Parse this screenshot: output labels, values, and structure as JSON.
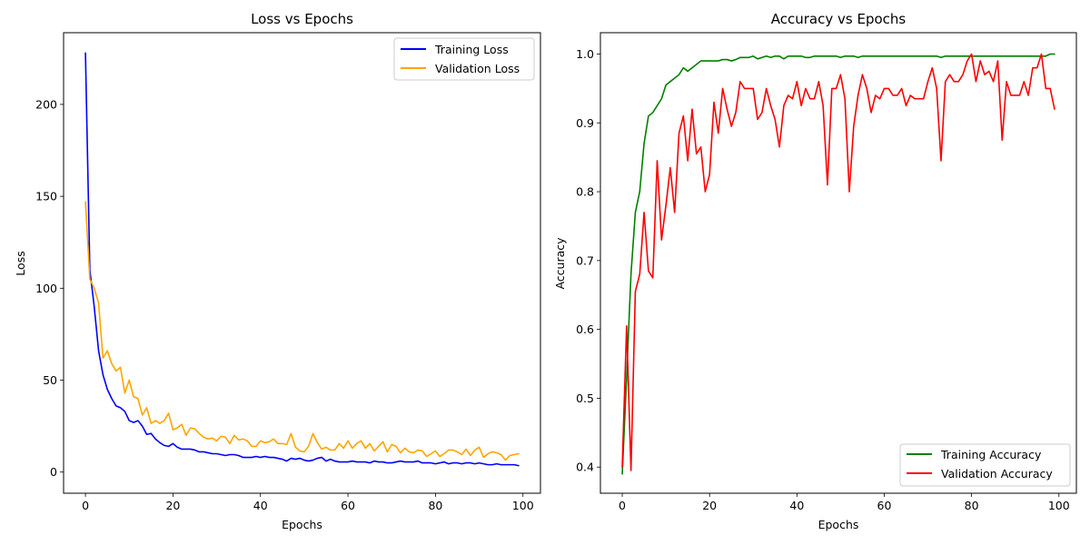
{
  "chart_data": [
    {
      "type": "line",
      "title": "Loss vs Epochs",
      "xlabel": "Epochs",
      "ylabel": "Loss",
      "xlim": [
        -5,
        104
      ],
      "ylim": [
        -11.5,
        239
      ],
      "xticks": [
        0,
        20,
        40,
        60,
        80,
        100
      ],
      "yticks": [
        0,
        50,
        100,
        150,
        200
      ],
      "legend_position": "top-right",
      "x": [
        0,
        1,
        2,
        3,
        4,
        5,
        6,
        7,
        8,
        9,
        10,
        11,
        12,
        13,
        14,
        15,
        16,
        17,
        18,
        19,
        20,
        21,
        22,
        23,
        24,
        25,
        26,
        27,
        28,
        29,
        30,
        31,
        32,
        33,
        34,
        35,
        36,
        37,
        38,
        39,
        40,
        41,
        42,
        43,
        44,
        45,
        46,
        47,
        48,
        49,
        50,
        51,
        52,
        53,
        54,
        55,
        56,
        57,
        58,
        59,
        60,
        61,
        62,
        63,
        64,
        65,
        66,
        67,
        68,
        69,
        70,
        71,
        72,
        73,
        74,
        75,
        76,
        77,
        78,
        79,
        80,
        81,
        82,
        83,
        84,
        85,
        86,
        87,
        88,
        89,
        90,
        91,
        92,
        93,
        94,
        95,
        96,
        97,
        98,
        99
      ],
      "series": [
        {
          "name": "Training Loss",
          "color": "#0000ff",
          "values": [
            228,
            110,
            90,
            66,
            53,
            45,
            40,
            36,
            35,
            33,
            28,
            27,
            28,
            25,
            20.5,
            21,
            18,
            16,
            14.5,
            14,
            15.5,
            13.5,
            12.5,
            12.5,
            12.5,
            12,
            11,
            11,
            10.5,
            10,
            10,
            9.5,
            9,
            9.5,
            9.5,
            9,
            8,
            8,
            8,
            8.5,
            8,
            8.5,
            8,
            8,
            7.5,
            7,
            6,
            7.5,
            7,
            7.5,
            6.5,
            6,
            6.5,
            7.5,
            8,
            6,
            7,
            6,
            5.5,
            5.5,
            5.5,
            6,
            5.5,
            5.5,
            5.5,
            5,
            6,
            5.5,
            5.5,
            5,
            5,
            5.5,
            6,
            5.5,
            5.5,
            5.5,
            6,
            5,
            5,
            5,
            4.5,
            5,
            5.5,
            4.5,
            5,
            5,
            4.5,
            5,
            5,
            4.5,
            5,
            4.5,
            4,
            4,
            4.5,
            4,
            4,
            4,
            4,
            3.5
          ]
        },
        {
          "name": "Validation Loss",
          "color": "#ffa500",
          "values": [
            147,
            105,
            100,
            92,
            62,
            66,
            59,
            55,
            57,
            43,
            50,
            41,
            40,
            31,
            35,
            26.5,
            28,
            26.5,
            28,
            32,
            23,
            24,
            26,
            20,
            24,
            23.5,
            21,
            19,
            18,
            18.5,
            17,
            19.5,
            19,
            15.5,
            20,
            17.5,
            18,
            17,
            14,
            14,
            17,
            16,
            16.5,
            18,
            15.5,
            15.5,
            15,
            21,
            13.5,
            11.5,
            11,
            14,
            21,
            16,
            12.5,
            13.5,
            12,
            12,
            15.5,
            13,
            17,
            13,
            15.5,
            17,
            13,
            15.5,
            11.5,
            14,
            16.5,
            11,
            15,
            14,
            10.5,
            13,
            11,
            10.5,
            12,
            11.5,
            8.5,
            10,
            11.5,
            8.5,
            10,
            12,
            12,
            11,
            9.5,
            12.5,
            9,
            12,
            13.5,
            8,
            10,
            11,
            10.5,
            9.5,
            6.5,
            9,
            9.5,
            10
          ]
        }
      ]
    },
    {
      "type": "line",
      "title": "Accuracy vs Epochs",
      "xlabel": "Epochs",
      "ylabel": "Accuracy",
      "xlim": [
        -5,
        104
      ],
      "ylim": [
        0.362,
        1.031
      ],
      "xticks": [
        0,
        20,
        40,
        60,
        80,
        100
      ],
      "yticks": [
        0.4,
        0.5,
        0.6,
        0.7,
        0.8,
        0.9,
        1.0
      ],
      "legend_position": "bottom-right",
      "x": [
        0,
        1,
        2,
        3,
        4,
        5,
        6,
        7,
        8,
        9,
        10,
        11,
        12,
        13,
        14,
        15,
        16,
        17,
        18,
        19,
        20,
        21,
        22,
        23,
        24,
        25,
        26,
        27,
        28,
        29,
        30,
        31,
        32,
        33,
        34,
        35,
        36,
        37,
        38,
        39,
        40,
        41,
        42,
        43,
        44,
        45,
        46,
        47,
        48,
        49,
        50,
        51,
        52,
        53,
        54,
        55,
        56,
        57,
        58,
        59,
        60,
        61,
        62,
        63,
        64,
        65,
        66,
        67,
        68,
        69,
        70,
        71,
        72,
        73,
        74,
        75,
        76,
        77,
        78,
        79,
        80,
        81,
        82,
        83,
        84,
        85,
        86,
        87,
        88,
        89,
        90,
        91,
        92,
        93,
        94,
        95,
        96,
        97,
        98,
        99
      ],
      "series": [
        {
          "name": "Training Accuracy",
          "color": "#008000",
          "values": [
            0.39,
            0.53,
            0.68,
            0.77,
            0.8,
            0.87,
            0.91,
            0.915,
            0.925,
            0.935,
            0.955,
            0.96,
            0.965,
            0.97,
            0.98,
            0.975,
            0.98,
            0.985,
            0.99,
            0.99,
            0.99,
            0.99,
            0.99,
            0.992,
            0.992,
            0.99,
            0.992,
            0.995,
            0.995,
            0.995,
            0.997,
            0.993,
            0.995,
            0.997,
            0.995,
            0.997,
            0.997,
            0.993,
            0.997,
            0.997,
            0.997,
            0.997,
            0.995,
            0.995,
            0.997,
            0.997,
            0.997,
            0.997,
            0.997,
            0.997,
            0.995,
            0.997,
            0.997,
            0.997,
            0.995,
            0.997,
            0.997,
            0.997,
            0.997,
            0.997,
            0.997,
            0.997,
            0.997,
            0.997,
            0.997,
            0.997,
            0.997,
            0.997,
            0.997,
            0.997,
            0.997,
            0.997,
            0.997,
            0.995,
            0.997,
            0.997,
            0.997,
            0.997,
            0.997,
            0.997,
            0.997,
            0.997,
            0.997,
            0.997,
            0.997,
            0.997,
            0.997,
            0.997,
            0.997,
            0.997,
            0.997,
            0.997,
            0.997,
            0.997,
            0.997,
            0.997,
            0.997,
            0.997,
            1.0,
            1.0
          ]
        },
        {
          "name": "Validation Accuracy",
          "color": "#ff0000",
          "values": [
            0.4,
            0.605,
            0.395,
            0.655,
            0.68,
            0.77,
            0.685,
            0.675,
            0.845,
            0.73,
            0.78,
            0.835,
            0.77,
            0.885,
            0.91,
            0.845,
            0.92,
            0.855,
            0.865,
            0.8,
            0.825,
            0.93,
            0.885,
            0.95,
            0.92,
            0.895,
            0.915,
            0.96,
            0.95,
            0.95,
            0.95,
            0.905,
            0.915,
            0.95,
            0.925,
            0.905,
            0.865,
            0.925,
            0.94,
            0.935,
            0.96,
            0.925,
            0.95,
            0.935,
            0.935,
            0.96,
            0.925,
            0.81,
            0.95,
            0.95,
            0.97,
            0.935,
            0.8,
            0.895,
            0.94,
            0.97,
            0.95,
            0.915,
            0.94,
            0.935,
            0.95,
            0.95,
            0.94,
            0.94,
            0.95,
            0.925,
            0.94,
            0.935,
            0.935,
            0.935,
            0.96,
            0.98,
            0.95,
            0.845,
            0.96,
            0.97,
            0.96,
            0.96,
            0.97,
            0.99,
            1.0,
            0.96,
            0.99,
            0.97,
            0.975,
            0.96,
            0.99,
            0.875,
            0.96,
            0.94,
            0.94,
            0.94,
            0.96,
            0.94,
            0.98,
            0.98,
            1.0,
            0.95,
            0.95,
            0.92
          ]
        }
      ]
    }
  ]
}
